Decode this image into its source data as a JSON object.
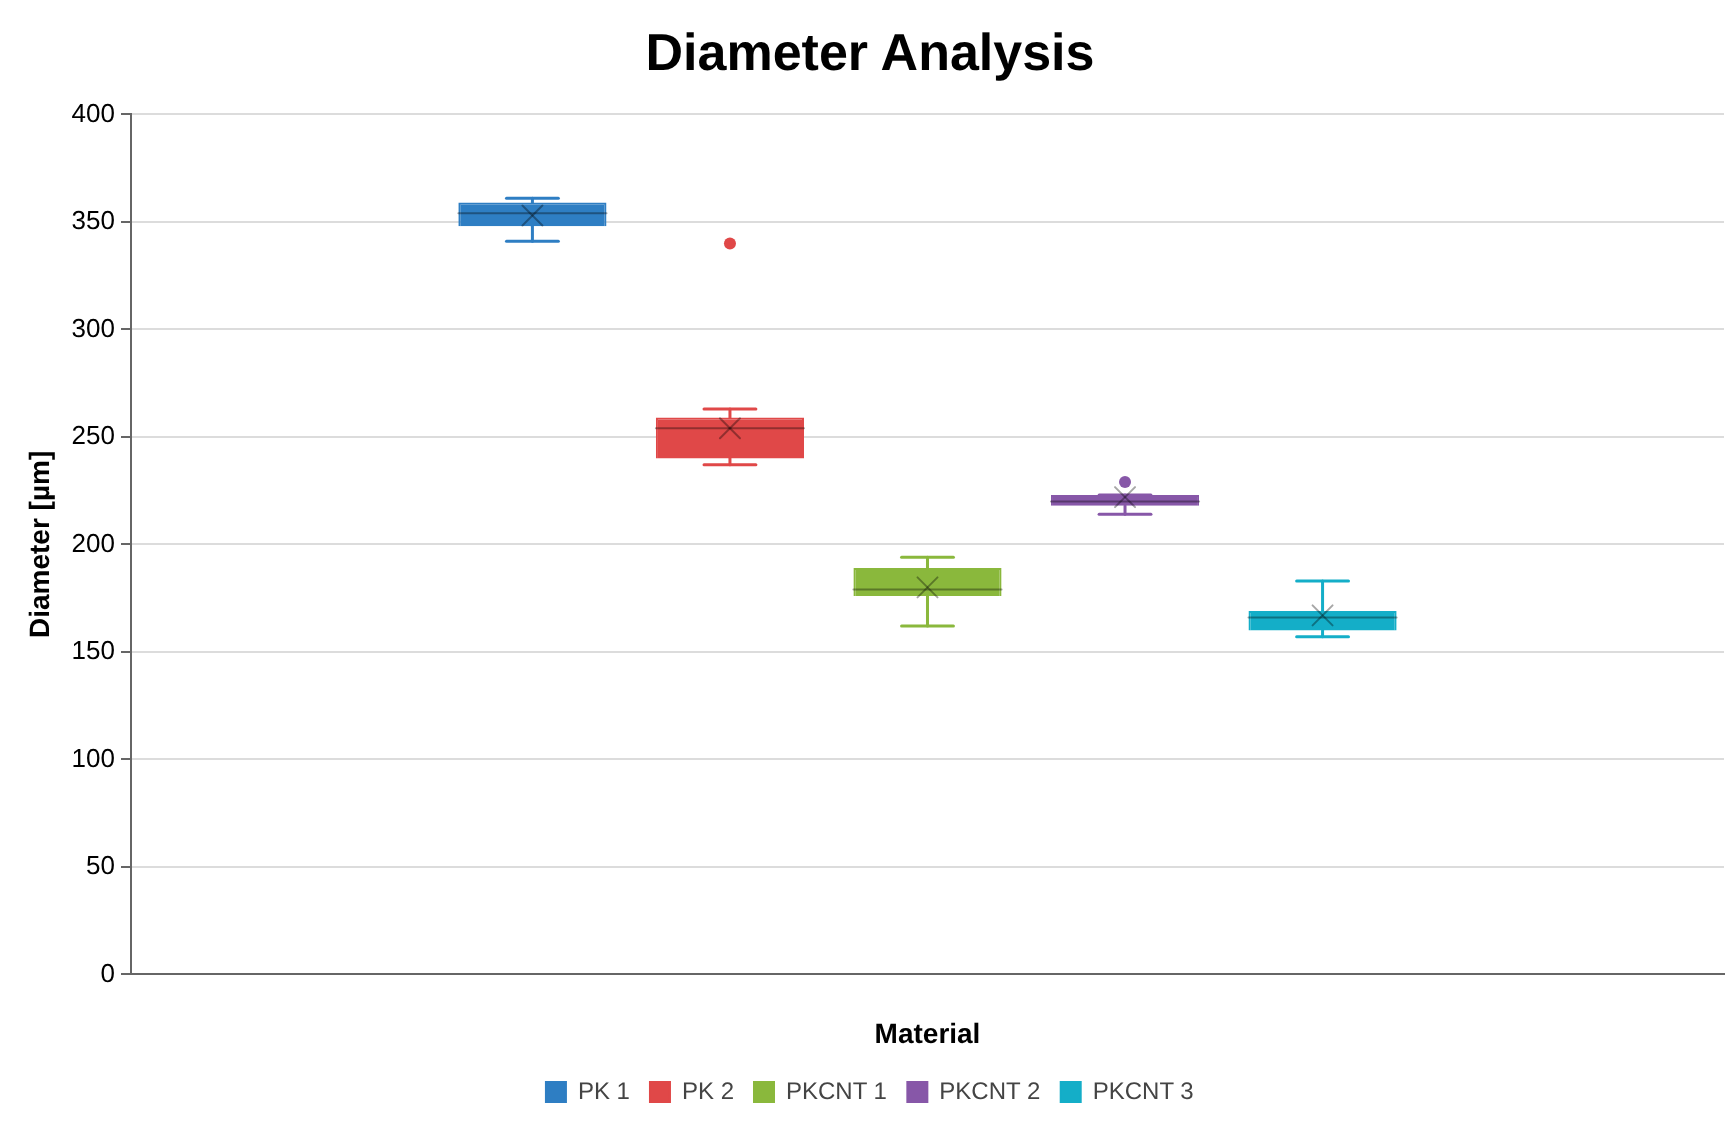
{
  "chart_data": {
    "type": "box",
    "title": "Diameter Analysis",
    "xlabel": "Material",
    "ylabel": "Diameter [µm]",
    "categories": [
      null
    ],
    "ylim": [
      0,
      400
    ],
    "yticks": [
      0,
      50,
      100,
      150,
      200,
      250,
      300,
      350,
      400
    ],
    "grid": "y",
    "legend": "bottom",
    "tick_labels": "y",
    "series": [
      {
        "name": "PK 1",
        "color": "#2e7ec3",
        "boxes": [
          {
            "low": 341,
            "q1": 348,
            "median": 354,
            "q3": 359,
            "high": 361,
            "mean": 353
          }
        ]
      },
      {
        "name": "PK 2",
        "color": "#e04848",
        "boxes": [
          {
            "low": 237,
            "q1": 240,
            "median": 254,
            "q3": 259,
            "high": 263,
            "mean": 254,
            "outliers": [
              340
            ]
          }
        ]
      },
      {
        "name": "PKCNT 1",
        "color": "#8ab83c",
        "boxes": [
          {
            "low": 162,
            "q1": 176,
            "median": 179,
            "q3": 189,
            "high": 194,
            "mean": 180
          }
        ]
      },
      {
        "name": "PKCNT 2",
        "color": "#8757a8",
        "boxes": [
          {
            "low": 214,
            "q1": 218,
            "median": 220,
            "q3": 223,
            "high": 223,
            "mean": 222,
            "outliers": [
              229
            ]
          }
        ]
      },
      {
        "name": "PKCNT 3",
        "color": "#14aec8",
        "boxes": [
          {
            "low": 157,
            "q1": 160,
            "median": 166,
            "q3": 169,
            "high": 183,
            "mean": 167
          }
        ]
      }
    ]
  }
}
